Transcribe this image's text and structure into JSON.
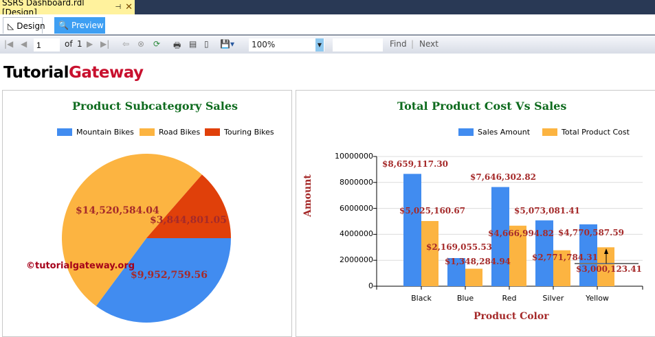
{
  "window": {
    "doc_tab": "SSRS Dashboard.rdl [Design]",
    "pin_icon": "pin-icon",
    "close_icon": "close-icon"
  },
  "tabs": [
    {
      "label": "Design",
      "active": false
    },
    {
      "label": "Preview",
      "active": true
    }
  ],
  "toolbar": {
    "page": "1",
    "of_label": "of",
    "total_pages": "1",
    "zoom": "100%",
    "find": "Find",
    "next": "Next"
  },
  "logo": {
    "part1": "Tutorial",
    "part2": "Gateway"
  },
  "pie_chart": {
    "title": "Product Subcategory Sales",
    "watermark": "©tutorialgateway.org"
  },
  "bar_chart": {
    "title": "Total Product Cost Vs Sales"
  },
  "chart_data": [
    {
      "type": "pie",
      "title": "Product Subcategory Sales",
      "legend": "top",
      "categories": [
        "Mountain Bikes",
        "Road Bikes",
        "Touring Bikes"
      ],
      "values": [
        9952759.56,
        14520584.04,
        3844801.05
      ],
      "labels": [
        "$9,952,759.56",
        "$14,520,584.04",
        "$3,844,801.05"
      ],
      "colors": [
        "#418cf0",
        "#fcb441",
        "#e0400a"
      ]
    },
    {
      "type": "bar",
      "title": "Total Product Cost Vs Sales",
      "xlabel": "Product Color",
      "ylabel": "Amount",
      "legend": "top-right",
      "grid": true,
      "categories": [
        "Black",
        "Blue",
        "Red",
        "Silver",
        "Yellow"
      ],
      "ylim": [
        0,
        10000000
      ],
      "yticks": [
        "0",
        "2000000",
        "4000000",
        "6000000",
        "8000000",
        "10000000"
      ],
      "series": [
        {
          "name": "Sales Amount",
          "color": "#418cf0",
          "values": [
            8659117.3,
            2169055.53,
            7646302.82,
            5073081.41,
            4770587.59
          ],
          "labels": [
            "$8,659,117.30",
            "$2,169,055.53",
            "$7,646,302.82",
            "$5,073,081.41",
            "$4,770,587.59"
          ]
        },
        {
          "name": "Total Product Cost",
          "color": "#fcb441",
          "values": [
            5025160.67,
            1348284.94,
            4666994.82,
            2771784.31,
            3000123.41
          ],
          "labels": [
            "$5,025,160.67",
            "$1,348,284.94",
            "$4,666,994.82",
            "$2,771,784.31",
            "$3,000,123.41"
          ]
        }
      ]
    }
  ]
}
